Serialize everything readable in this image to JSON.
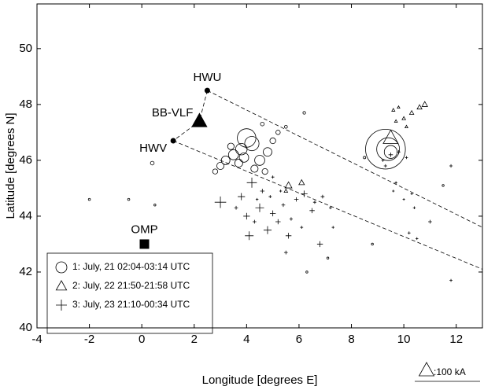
{
  "chart_data": {
    "type": "scatter",
    "xlabel": "Longitude [degrees E]",
    "ylabel": "Latitude [degrees N]",
    "xlim": [
      -4,
      13
    ],
    "ylim": [
      40,
      51.6
    ],
    "xticks": [
      -4,
      -2,
      0,
      2,
      4,
      6,
      8,
      10,
      12
    ],
    "yticks": [
      40,
      42,
      44,
      46,
      48,
      50
    ],
    "series": [
      {
        "name": "1: July, 21 02:04-03:14 UTC",
        "marker": "circle",
        "color": "#000000",
        "x": [
          9.3,
          9.4,
          9.5,
          4.0,
          4.2,
          3.8,
          3.5,
          3.2,
          3.0,
          4.5,
          4.8,
          4.3,
          3.7,
          5.0,
          5.2,
          4.6,
          3.4,
          3.9,
          4.7,
          2.8,
          0.4,
          5.5,
          6.2,
          8.5,
          -2.0,
          -0.5,
          0.5,
          7.1,
          6.3,
          8.8,
          11.5
        ],
        "y": [
          46.4,
          46.4,
          46.3,
          46.8,
          46.6,
          46.4,
          46.2,
          46.0,
          45.8,
          46.0,
          46.3,
          45.7,
          45.9,
          46.7,
          47.0,
          47.3,
          46.5,
          46.1,
          45.6,
          45.6,
          45.9,
          47.2,
          47.7,
          46.1,
          44.6,
          44.6,
          44.4,
          42.5,
          42.0,
          43.0,
          45.1
        ],
        "size": [
          270,
          150,
          80,
          120,
          90,
          70,
          60,
          50,
          40,
          60,
          50,
          40,
          45,
          30,
          20,
          15,
          35,
          55,
          30,
          25,
          15,
          10,
          8,
          6,
          4,
          4,
          3,
          3,
          3,
          3,
          3
        ]
      },
      {
        "name": "2: July, 22 21:50-21:58 UTC",
        "marker": "triangle",
        "color": "#000000",
        "x": [
          9.5,
          10.8,
          10.6,
          10.3,
          10.0,
          9.6,
          9.7,
          10.1,
          9.8,
          5.6,
          6.1,
          5.5
        ],
        "y": [
          46.8,
          48.0,
          47.9,
          47.7,
          47.5,
          47.8,
          47.4,
          47.2,
          47.9,
          45.1,
          45.2,
          44.9
        ],
        "size": [
          100,
          30,
          25,
          20,
          15,
          12,
          10,
          10,
          8,
          40,
          30,
          15
        ]
      },
      {
        "name": "3: July, 23 21:10-00:34 UTC",
        "marker": "cross",
        "color": "#000000",
        "x": [
          4.2,
          3.8,
          3.0,
          4.5,
          4.0,
          5.0,
          5.2,
          4.8,
          4.1,
          5.6,
          6.5,
          6.8,
          5.9,
          6.2,
          5.4,
          4.6,
          3.6,
          4.3,
          5.7,
          6.1,
          6.6,
          7.2,
          5.0,
          4.9,
          4.4,
          5.3,
          6.9,
          5.5,
          7.3,
          9.5,
          9.8,
          10.1,
          9.3,
          9.7,
          10.0,
          10.3,
          10.4,
          10.2,
          11.0,
          11.8,
          9.2,
          9.6,
          11.8,
          10.5
        ],
        "y": [
          45.2,
          44.7,
          44.5,
          44.3,
          44.0,
          44.1,
          43.8,
          43.5,
          43.3,
          43.3,
          44.2,
          43.0,
          44.6,
          44.8,
          44.4,
          44.9,
          44.3,
          43.8,
          43.9,
          43.6,
          44.5,
          44.3,
          45.4,
          44.7,
          44.6,
          44.9,
          44.7,
          42.7,
          43.6,
          46.2,
          46.3,
          46.1,
          45.8,
          45.2,
          44.6,
          44.8,
          44.3,
          43.4,
          43.8,
          45.8,
          46.0,
          44.9,
          41.7,
          43.2
        ],
        "size": [
          60,
          40,
          70,
          50,
          35,
          30,
          25,
          45,
          50,
          30,
          25,
          30,
          20,
          35,
          15,
          20,
          15,
          15,
          12,
          10,
          12,
          10,
          10,
          10,
          8,
          8,
          15,
          15,
          8,
          20,
          15,
          10,
          12,
          8,
          6,
          6,
          8,
          10,
          15,
          12,
          10,
          6,
          10,
          8
        ]
      }
    ],
    "stations": [
      {
        "name": "HWU",
        "x": 2.5,
        "y": 48.5,
        "marker": "dot"
      },
      {
        "name": "BB-VLF",
        "x": 2.2,
        "y": 47.4,
        "marker": "triangle"
      },
      {
        "name": "HWV",
        "x": 1.2,
        "y": 46.7,
        "marker": "dot"
      },
      {
        "name": "OMP",
        "x": 0.1,
        "y": 43.0,
        "marker": "square"
      }
    ],
    "lines": [
      {
        "x": [
          2.5,
          13
        ],
        "y": [
          48.5,
          43.6
        ]
      },
      {
        "x": [
          1.2,
          13
        ],
        "y": [
          46.7,
          42.1
        ]
      },
      {
        "x": [
          2.5,
          2.2,
          1.2
        ],
        "y": [
          48.5,
          47.4,
          46.7
        ]
      }
    ],
    "scale": {
      "value": 100,
      "label": ":100 kA"
    }
  }
}
